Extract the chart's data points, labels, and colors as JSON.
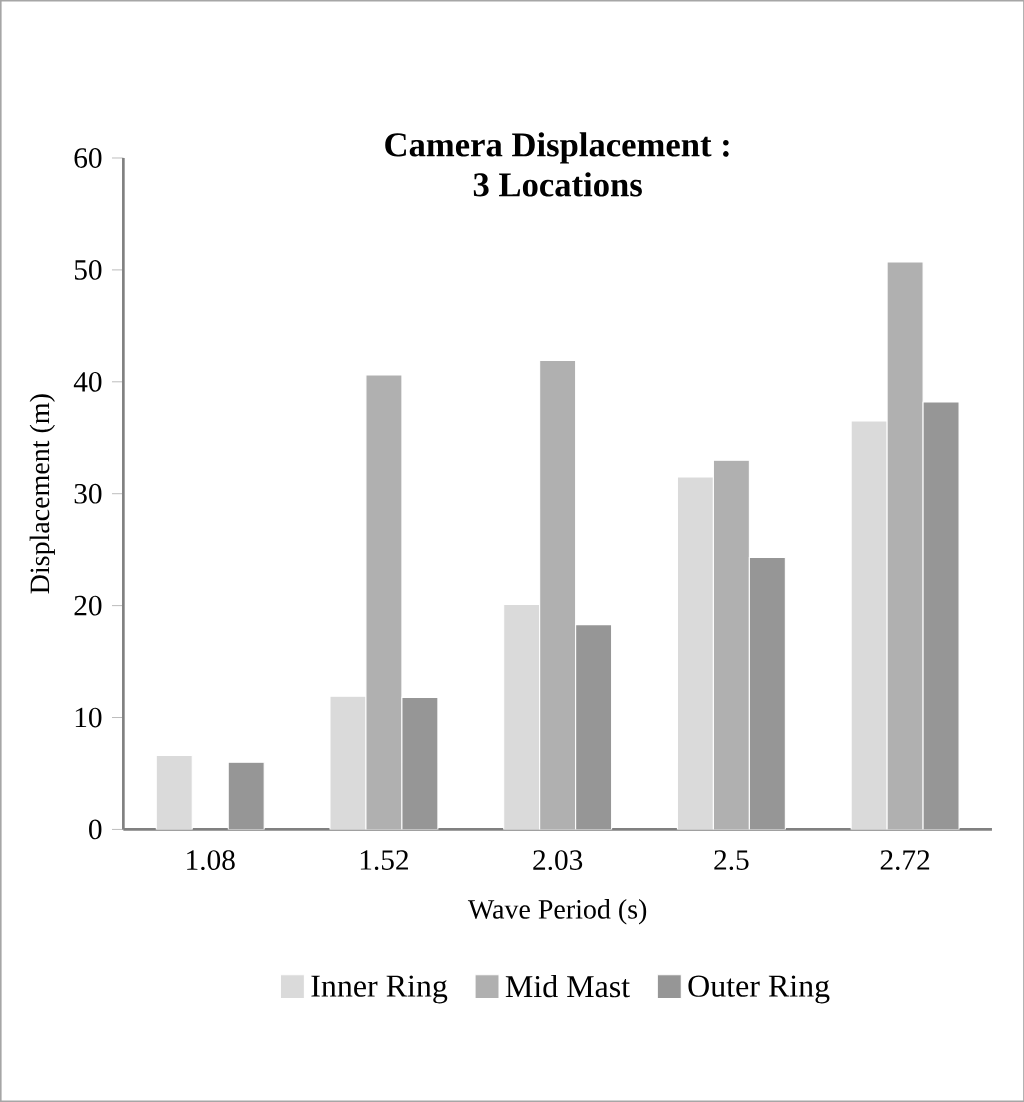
{
  "chart_data": {
    "type": "bar",
    "title": "Camera Displacement :\n3 Locations",
    "xlabel": "Wave Period (s)",
    "ylabel": "Displacement (m)",
    "categories": [
      "1.08",
      "1.52",
      "2.03",
      "2.5",
      "2.72"
    ],
    "series": [
      {
        "name": "Inner Ring",
        "color": "#dadada",
        "values": [
          6.6,
          11.9,
          20.1,
          31.5,
          36.5
        ]
      },
      {
        "name": "Mid Mast",
        "color": "#b0b0b0",
        "values": [
          null,
          40.6,
          41.9,
          33.0,
          50.7
        ]
      },
      {
        "name": "Outer Ring",
        "color": "#969696",
        "values": [
          6.0,
          11.8,
          18.3,
          24.3,
          38.2
        ]
      }
    ],
    "ylim": [
      0,
      60
    ],
    "yticks": [
      0,
      10,
      20,
      30,
      40,
      50,
      60
    ],
    "grid": false,
    "legend": "bottom"
  }
}
